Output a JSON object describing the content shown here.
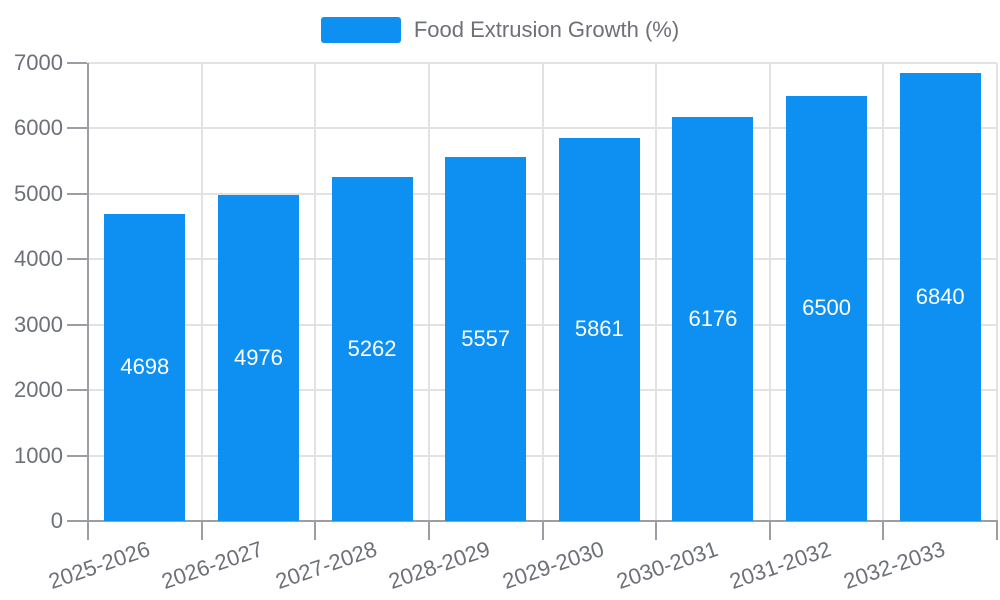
{
  "chart_data": {
    "type": "bar",
    "title": "",
    "categories": [
      "2025-2026",
      "2026-2027",
      "2027-2028",
      "2028-2029",
      "2029-2030",
      "2030-2031",
      "2031-2032",
      "2032-2033"
    ],
    "series": [
      {
        "name": "Food Extrusion Growth (%)",
        "values": [
          4698,
          4976,
          5262,
          5557,
          5861,
          6176,
          6500,
          6840
        ],
        "color": "#0d90f2"
      }
    ],
    "xlabel": "",
    "ylabel": "",
    "ylim": [
      0,
      7000
    ],
    "ytick_step": 1000,
    "ytick_labels": [
      "0",
      "1000",
      "2000",
      "3000",
      "4000",
      "5000",
      "6000",
      "7000"
    ],
    "grid": true,
    "legend_position": "top",
    "bar_label_position": "inside-center",
    "colors": {
      "bar": "#0d90f2",
      "bar_value_label": "#ffffff",
      "axis_text": "#6e7079",
      "axis_line": "#9b9ea4",
      "gridline": "#e2e2e2",
      "background": "#ffffff"
    }
  }
}
